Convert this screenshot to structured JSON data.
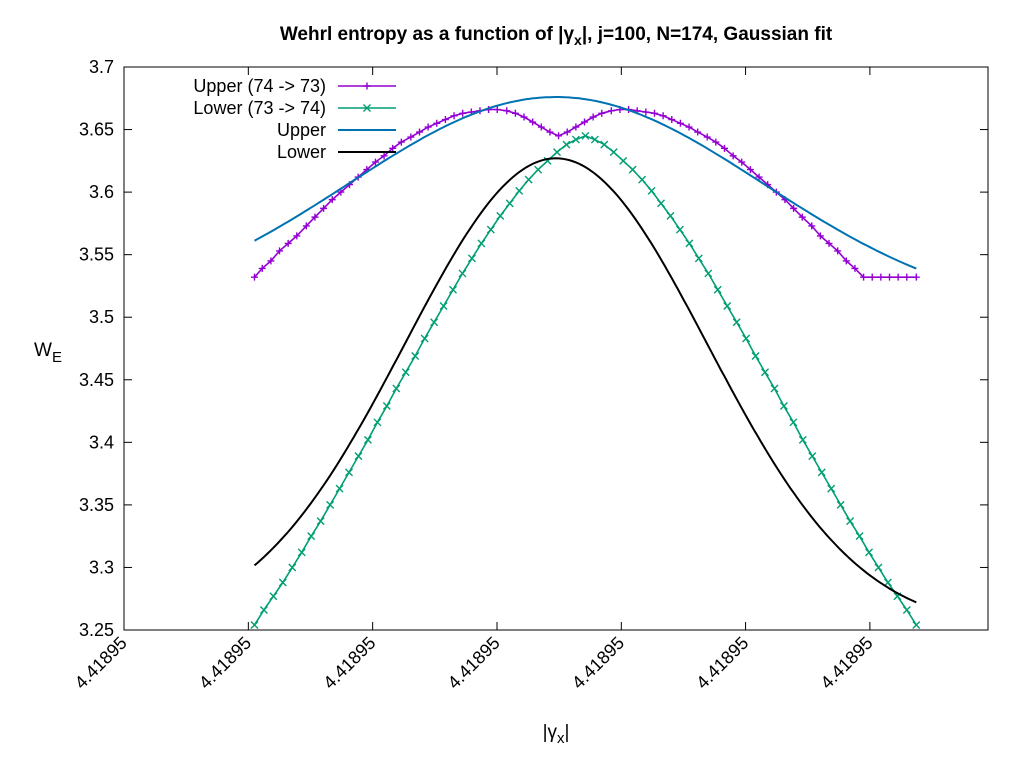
{
  "chart_data": {
    "type": "line",
    "title_main": "Wehrl entropy as a function of |γ",
    "title_sub": "x",
    "title_rest": "|,  j=100, N=174, Gaussian fit",
    "xlabel_main": "|γ",
    "xlabel_sub": "x",
    "xlabel_rest": "|",
    "ylabel_main": "W",
    "ylabel_sub": "E",
    "ylim": [
      3.25,
      3.7
    ],
    "xlim": [
      0,
      1
    ],
    "yticks": [
      3.25,
      3.3,
      3.35,
      3.4,
      3.45,
      3.5,
      3.55,
      3.6,
      3.65,
      3.7
    ],
    "ytick_labels": [
      "3.25",
      "3.3",
      "3.35",
      "3.4",
      "3.45",
      "3.5",
      "3.55",
      "3.6",
      "3.65",
      "3.7"
    ],
    "xticks": [
      0.0,
      0.1439,
      0.2878,
      0.4317,
      0.5756,
      0.7194,
      0.8633
    ],
    "xtick_labels": [
      "4.41895",
      "4.41895",
      "4.41895",
      "4.41895",
      "4.41895",
      "4.41895",
      "4.41895"
    ],
    "legend_position": "top-left",
    "series": [
      {
        "name": "Upper (74 -> 73)",
        "color": "#9400d3",
        "marker": "plus",
        "x": [
          0.151,
          0.16,
          0.17,
          0.18,
          0.19,
          0.2,
          0.211,
          0.221,
          0.231,
          0.241,
          0.251,
          0.261,
          0.271,
          0.281,
          0.291,
          0.301,
          0.311,
          0.321,
          0.332,
          0.342,
          0.352,
          0.362,
          0.372,
          0.382,
          0.392,
          0.402,
          0.412,
          0.422,
          0.432,
          0.443,
          0.453,
          0.463,
          0.473,
          0.483,
          0.493,
          0.503,
          0.513,
          0.523,
          0.533,
          0.543,
          0.553,
          0.564,
          0.574,
          0.584,
          0.594,
          0.604,
          0.614,
          0.624,
          0.634,
          0.644,
          0.654,
          0.664,
          0.675,
          0.685,
          0.695,
          0.705,
          0.715,
          0.725,
          0.735,
          0.745,
          0.755,
          0.765,
          0.775,
          0.785,
          0.796,
          0.806,
          0.816,
          0.826,
          0.836,
          0.846,
          0.856,
          0.866,
          0.876,
          0.886,
          0.896,
          0.906,
          0.917
        ],
        "y": [
          3.532,
          3.539,
          3.545,
          3.553,
          3.559,
          3.565,
          3.573,
          3.58,
          3.587,
          3.594,
          3.6,
          3.606,
          3.612,
          3.618,
          3.624,
          3.629,
          3.635,
          3.64,
          3.644,
          3.648,
          3.652,
          3.655,
          3.658,
          3.661,
          3.663,
          3.664,
          3.665,
          3.666,
          3.666,
          3.665,
          3.663,
          3.66,
          3.656,
          3.652,
          3.648,
          3.645,
          3.648,
          3.652,
          3.656,
          3.66,
          3.663,
          3.665,
          3.666,
          3.666,
          3.665,
          3.664,
          3.663,
          3.661,
          3.658,
          3.655,
          3.652,
          3.648,
          3.644,
          3.64,
          3.635,
          3.629,
          3.624,
          3.618,
          3.612,
          3.606,
          3.6,
          3.594,
          3.587,
          3.58,
          3.573,
          3.565,
          3.559,
          3.553,
          3.545,
          3.539,
          3.532,
          3.532,
          3.532,
          3.532,
          3.532,
          3.532,
          3.532
        ]
      },
      {
        "name": "Lower (73 -> 74)",
        "color": "#009e73",
        "marker": "cross",
        "x": [
          0.151,
          0.161,
          0.171,
          0.181,
          0.191,
          0.201,
          0.211,
          0.221,
          0.231,
          0.241,
          0.251,
          0.261,
          0.271,
          0.281,
          0.291,
          0.301,
          0.311,
          0.321,
          0.331,
          0.341,
          0.351,
          0.361,
          0.371,
          0.381,
          0.391,
          0.401,
          0.411,
          0.421,
          0.431,
          0.441,
          0.451,
          0.461,
          0.471,
          0.481,
          0.491,
          0.501,
          0.511,
          0.521,
          0.531,
          0.541,
          0.551,
          0.561,
          0.571,
          0.581,
          0.591,
          0.601,
          0.611,
          0.621,
          0.631,
          0.641,
          0.651,
          0.661,
          0.671,
          0.681,
          0.691,
          0.701,
          0.711,
          0.721,
          0.731,
          0.741,
          0.751,
          0.761,
          0.771,
          0.781,
          0.791,
          0.801,
          0.811,
          0.821,
          0.831,
          0.841,
          0.851
        ],
        "y": [
          3.254,
          3.266,
          3.277,
          3.288,
          3.3,
          3.312,
          3.325,
          3.337,
          3.35,
          3.363,
          3.376,
          3.389,
          3.402,
          3.416,
          3.429,
          3.443,
          3.456,
          3.469,
          3.483,
          3.496,
          3.509,
          3.522,
          3.535,
          3.547,
          3.559,
          3.57,
          3.581,
          3.591,
          3.601,
          3.61,
          3.618,
          3.625,
          3.632,
          3.638,
          3.642,
          3.645,
          3.642,
          3.638,
          3.632,
          3.625,
          3.618,
          3.61,
          3.601,
          3.591,
          3.581,
          3.57,
          3.559,
          3.547,
          3.535,
          3.522,
          3.509,
          3.496,
          3.483,
          3.469,
          3.456,
          3.443,
          3.429,
          3.416,
          3.402,
          3.389,
          3.376,
          3.363,
          3.35,
          3.337,
          3.325,
          3.312,
          3.3,
          3.288,
          3.277,
          3.266,
          3.254
        ]
      },
      {
        "name": "Upper",
        "color": "#0072b2",
        "marker": "none",
        "fit": {
          "amplitude": 3.676,
          "center": 0.5,
          "sigma": 0.24,
          "offset": 3.5
        }
      },
      {
        "name": "Lower",
        "color": "#000000",
        "marker": "none",
        "fit": {
          "amplitude": 3.627,
          "center": 0.5,
          "sigma": 0.175,
          "offset": 3.25
        }
      }
    ]
  }
}
